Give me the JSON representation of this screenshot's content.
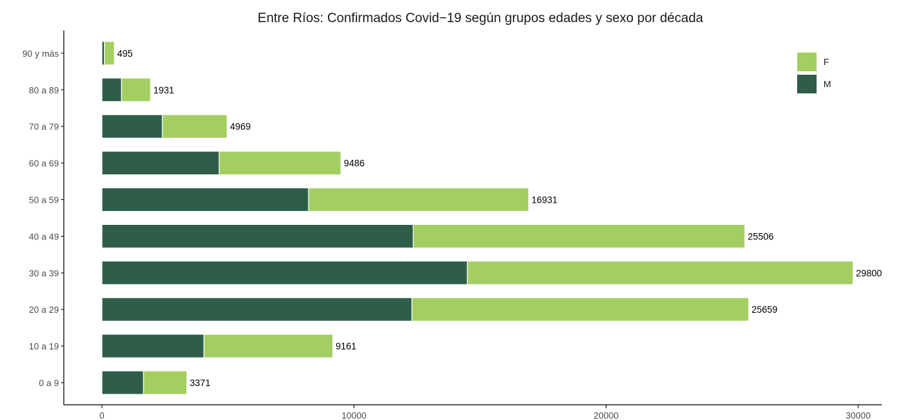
{
  "chart_data": {
    "type": "bar",
    "orientation": "horizontal",
    "stacked": true,
    "title": "Entre Ríos: Confirmados Covid−19 según grupos edades y sexo por década",
    "xlabel": "",
    "ylabel": "",
    "categories": [
      "0 a 9",
      "10 a 19",
      "20 a 29",
      "30 a 39",
      "40 a 49",
      "50 a 59",
      "60 a 69",
      "70 a 79",
      "80 a 89",
      "90  y más"
    ],
    "series": [
      {
        "name": "M",
        "color": "#2e5e4a",
        "values": [
          1650,
          4050,
          12300,
          14500,
          12350,
          8200,
          4650,
          2400,
          780,
          100
        ]
      },
      {
        "name": "F",
        "color": "#a3cf62",
        "values": [
          1721,
          5111,
          13359,
          15300,
          13156,
          8731,
          4836,
          2569,
          1151,
          395
        ]
      }
    ],
    "totals": [
      "3371",
      "9161",
      "25659",
      "29800",
      "25506",
      "16931",
      "9486",
      "4969",
      "1931",
      "495"
    ],
    "xlim": [
      0,
      30000
    ],
    "xticks": [
      "0",
      "10000",
      "20000",
      "30000"
    ],
    "legend": {
      "position": "top-right",
      "entries": [
        "F",
        "M"
      ]
    },
    "grid": false
  }
}
